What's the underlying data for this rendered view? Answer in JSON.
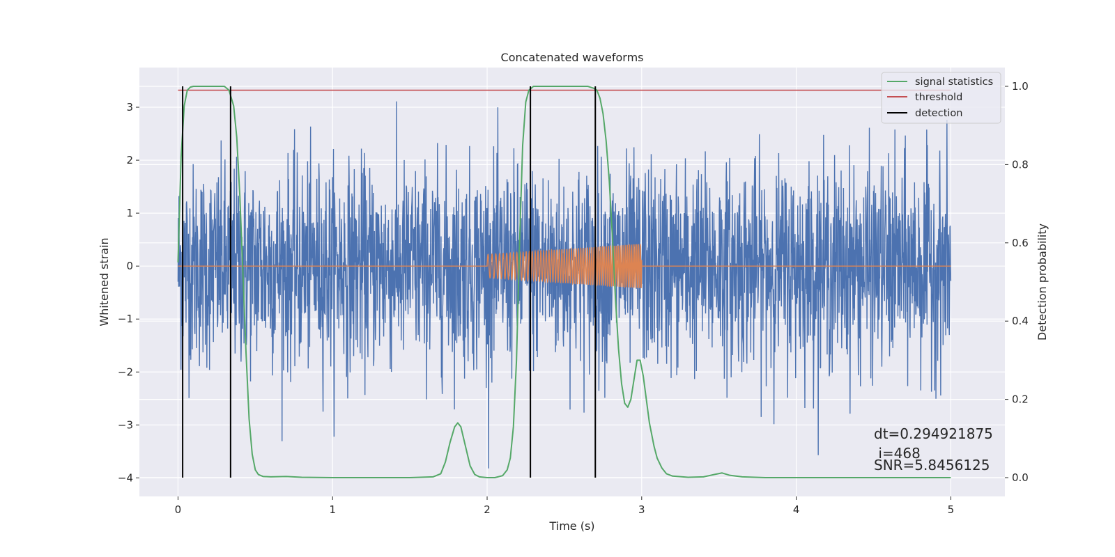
{
  "chart_data": {
    "type": "line",
    "title": "Concatenated waveforms",
    "xlabel": "Time (s)",
    "ylabel_left": "Whitened strain",
    "ylabel_right": "Detection probability",
    "xlim": [
      -0.25,
      5.35
    ],
    "ylim_left": [
      -4.35,
      3.75
    ],
    "ylim_right": [
      -0.048,
      1.048
    ],
    "xticks": [
      0,
      1,
      2,
      3,
      4,
      5
    ],
    "xtick_labels": [
      "0",
      "1",
      "2",
      "3",
      "4",
      "5"
    ],
    "yticks_left": [
      3,
      2,
      1,
      0,
      -1,
      -2,
      -3,
      -4
    ],
    "ytick_labels_left": [
      "3",
      "2",
      "1",
      "0",
      "−1",
      "−2",
      "−3",
      "−4"
    ],
    "yticks_right": [
      1.0,
      0.8,
      0.6,
      0.4,
      0.2,
      0.0
    ],
    "ytick_labels_right": [
      "1.0",
      "0.8",
      "0.6",
      "0.4",
      "0.2",
      "0.0"
    ],
    "grid": true,
    "legend_position": "top-right",
    "legend": [
      {
        "label": "signal statistics",
        "color": "#55a868"
      },
      {
        "label": "threshold",
        "color": "#c44e52"
      },
      {
        "label": "detection",
        "color": "#000000"
      }
    ],
    "colors": {
      "strain": "#4c72b0",
      "template": "#dd8452",
      "signal_statistics": "#55a868",
      "threshold": "#c44e52",
      "detection": "#000000",
      "plot_background": "#eaeaf2"
    },
    "series": [
      {
        "name": "strain",
        "axis": "left",
        "description": "noisy whitened strain",
        "x_range": [
          0,
          5
        ],
        "amplitude_range": [
          -4.0,
          3.38
        ]
      },
      {
        "name": "template",
        "axis": "left",
        "description": "chirp template",
        "x_range": [
          0,
          5
        ],
        "chirp_start": 2.0,
        "chirp_end": 3.0,
        "chirp_amplitude_range": [
          0.22,
          0.42
        ]
      },
      {
        "name": "signal statistics",
        "axis": "right",
        "x": [
          0.0,
          0.02,
          0.04,
          0.06,
          0.08,
          0.1,
          0.2,
          0.3,
          0.33,
          0.36,
          0.38,
          0.4,
          0.42,
          0.44,
          0.46,
          0.48,
          0.5,
          0.52,
          0.55,
          0.6,
          0.7,
          0.8,
          1.0,
          1.5,
          1.65,
          1.7,
          1.73,
          1.76,
          1.79,
          1.81,
          1.83,
          1.86,
          1.89,
          1.92,
          1.95,
          2.0,
          2.05,
          2.1,
          2.13,
          2.15,
          2.17,
          2.19,
          2.21,
          2.23,
          2.25,
          2.27,
          2.3,
          2.35,
          2.45,
          2.55,
          2.65,
          2.69,
          2.71,
          2.73,
          2.75,
          2.77,
          2.79,
          2.81,
          2.83,
          2.85,
          2.87,
          2.89,
          2.91,
          2.93,
          2.95,
          2.97,
          2.99,
          3.01,
          3.03,
          3.05,
          3.08,
          3.1,
          3.13,
          3.16,
          3.2,
          3.3,
          3.4,
          3.47,
          3.52,
          3.57,
          3.65,
          3.8,
          4.0,
          4.5,
          5.0
        ],
        "values": [
          0.55,
          0.82,
          0.95,
          0.99,
          0.998,
          1.0,
          1.0,
          1.0,
          0.99,
          0.95,
          0.87,
          0.72,
          0.52,
          0.32,
          0.15,
          0.06,
          0.02,
          0.008,
          0.003,
          0.002,
          0.003,
          0.001,
          0.0,
          0.0,
          0.002,
          0.01,
          0.04,
          0.09,
          0.13,
          0.14,
          0.13,
          0.08,
          0.03,
          0.008,
          0.002,
          0.0,
          0.0,
          0.005,
          0.02,
          0.05,
          0.13,
          0.3,
          0.6,
          0.85,
          0.96,
          0.99,
          1.0,
          1.0,
          1.0,
          1.0,
          1.0,
          0.995,
          0.99,
          0.97,
          0.93,
          0.86,
          0.76,
          0.62,
          0.46,
          0.33,
          0.24,
          0.19,
          0.18,
          0.2,
          0.25,
          0.3,
          0.3,
          0.26,
          0.2,
          0.14,
          0.08,
          0.05,
          0.025,
          0.01,
          0.004,
          0.001,
          0.002,
          0.008,
          0.012,
          0.006,
          0.002,
          0.0,
          0.0,
          0.0,
          0.0
        ]
      },
      {
        "name": "threshold",
        "axis": "right",
        "x": [
          0,
          5
        ],
        "values": [
          0.99,
          0.99
        ]
      }
    ],
    "detection_times": [
      0.03,
      0.34,
      2.28,
      2.7
    ],
    "annotations": [
      {
        "text": "dt=0.294921875",
        "x": 4.5,
        "y": -3.12
      },
      {
        "text": " i=468",
        "x": 4.5,
        "y": -3.5
      },
      {
        "text": "SNR=5.8456125",
        "x": 4.5,
        "y": -3.7
      }
    ]
  }
}
